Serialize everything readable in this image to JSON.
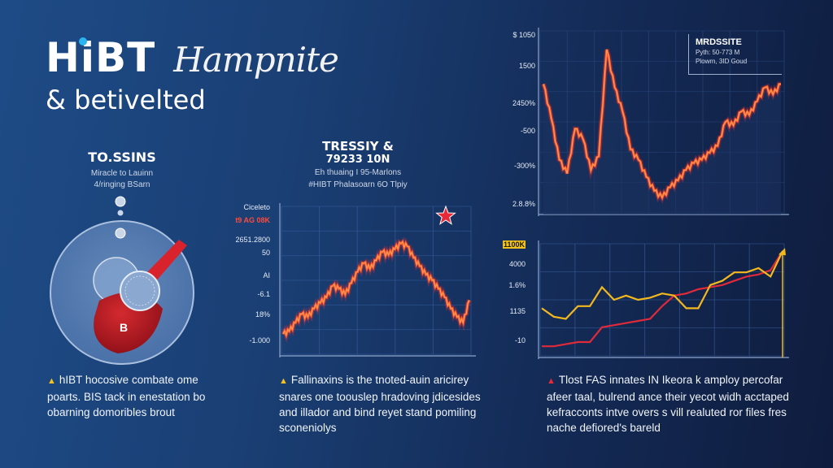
{
  "header": {
    "brand": "HiBT",
    "brand_script": "Hampnite",
    "subtitle": "& betivelted"
  },
  "left_panel": {
    "title": "TO.SSINS",
    "sub_lines": [
      "Miracle to Lauinn",
      "4/ringing BSarn"
    ],
    "illustration": "flask-with-red-bulb-icon",
    "illustration_badge": "B"
  },
  "middle_panel": {
    "title": "TRESSIY &",
    "value": "79233 10N",
    "sub_lines": [
      "Eh thuaing I 95-Marlons",
      "#HIBT Phalasoarn 6O Tlpiy"
    ]
  },
  "top_right_panel": {
    "legend": {
      "title": "MRDSSITE",
      "lines": [
        "Pyth: 50-773 M",
        "Plowrn, 3ID Goud"
      ]
    }
  },
  "paragraphs": [
    {
      "icon": "warning-icon",
      "icon_color": "#f2c21d",
      "text": "hIBT hocosive combate ome poarts. BIS tack in enestation bo obarning domoribles brout"
    },
    {
      "icon": "warning-icon",
      "icon_color": "#f2c21d",
      "text": "Fallinaxins is the tnoted-auin aricirey snares one toouslep hradoving jdicesides and illador and bind reyet stand pomiling sconeniolys"
    },
    {
      "icon": "warning-icon",
      "icon_color": "#e8293a",
      "text": "Tlost FAS innates IN Ikeora k amploy percofar afeer taal, bulrend ance their yecot widh acctaped kefracconts intve overs s vill realuted ror files fres nache defiored's bareld"
    }
  ],
  "colors": {
    "bg_left": "#1e4b86",
    "bg_right": "#0f1c3e",
    "line_orange": "#ff5a2a",
    "line_glow": "#ffb26a",
    "line_gold": "#f2b81d",
    "line_red": "#e02a3a",
    "grid": "#3a64a8",
    "star": "#e8293a"
  },
  "chart_data": [
    {
      "id": "middle",
      "type": "line",
      "title": "TRESSIY &",
      "y_tick_labels": [
        "Ciceleto",
        "t9 AG 08K",
        "2651.2800",
        "50",
        "AI",
        "-6.1",
        "18%",
        "-1.000"
      ],
      "x": [
        0,
        1,
        2,
        3,
        4,
        5,
        6,
        7,
        8,
        9,
        10,
        11,
        12,
        13,
        14,
        15,
        16,
        17,
        18,
        19,
        20,
        21,
        22,
        23,
        24,
        25,
        26,
        27,
        28,
        29,
        30
      ],
      "values": [
        12,
        14,
        20,
        26,
        24,
        30,
        34,
        38,
        46,
        44,
        40,
        48,
        56,
        62,
        58,
        64,
        70,
        68,
        72,
        76,
        74,
        66,
        60,
        54,
        50,
        44,
        38,
        30,
        24,
        20,
        36
      ],
      "ylim": [
        0,
        100
      ],
      "grid": true,
      "annotation": "red star marker at top right"
    },
    {
      "id": "top_right",
      "type": "line",
      "title": "MRDSSITE",
      "y_tick_labels": [
        "$ 1050",
        "1500",
        "2450%",
        "-500",
        "-300%",
        "2.8.8%"
      ],
      "x": [
        0,
        1,
        2,
        3,
        4,
        5,
        6,
        7,
        8,
        9,
        10,
        11,
        12,
        13,
        14,
        15,
        16,
        17,
        18,
        19,
        20,
        21,
        22,
        23,
        24,
        25,
        26,
        27,
        28,
        29,
        30
      ],
      "values": [
        72,
        52,
        28,
        20,
        46,
        40,
        22,
        30,
        92,
        70,
        56,
        34,
        28,
        18,
        10,
        6,
        12,
        16,
        22,
        26,
        28,
        32,
        36,
        50,
        48,
        56,
        54,
        62,
        70,
        66,
        72
      ],
      "ylim": [
        0,
        100
      ],
      "grid": true,
      "legend": [
        "Pyth: 50-773 M",
        "Plowrn, 3ID Goud"
      ]
    },
    {
      "id": "bottom_right",
      "type": "line",
      "y_tick_labels": [
        "1100K",
        "4000",
        "1.6%",
        "1135",
        "-10"
      ],
      "x": [
        0,
        1,
        2,
        3,
        4,
        5,
        6,
        7,
        8,
        9,
        10,
        11,
        12,
        13,
        14,
        15,
        16,
        17,
        18,
        19,
        20
      ],
      "series": [
        {
          "name": "gold",
          "values": [
            42,
            34,
            32,
            44,
            44,
            62,
            50,
            54,
            50,
            52,
            56,
            54,
            42,
            42,
            64,
            68,
            76,
            76,
            80,
            72,
            96
          ]
        },
        {
          "name": "red",
          "values": [
            6,
            6,
            8,
            10,
            10,
            24,
            26,
            28,
            30,
            32,
            44,
            54,
            56,
            60,
            62,
            64,
            68,
            72,
            74,
            78,
            96
          ]
        }
      ],
      "ylim": [
        0,
        100
      ],
      "grid": true,
      "annotation": "vertical gold marker at right edge"
    }
  ]
}
